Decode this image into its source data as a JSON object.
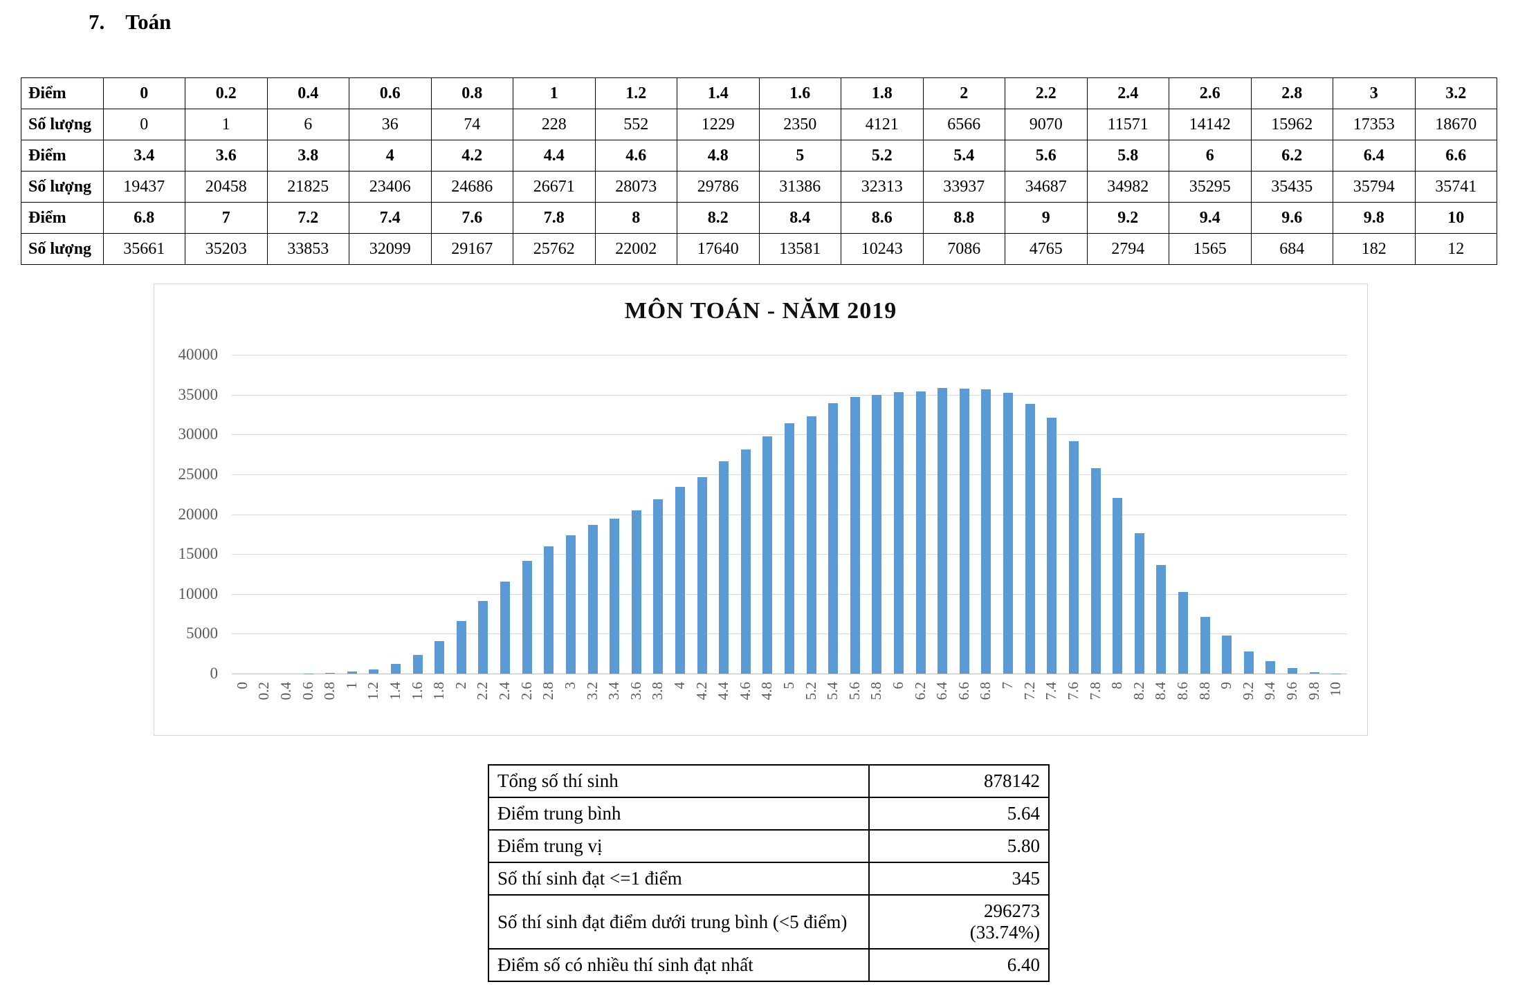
{
  "heading": {
    "number": "7.",
    "subject": "Toán"
  },
  "score_table": {
    "diem_label": "Điểm",
    "soluong_label": "Số lượng",
    "row_pairs": [
      {
        "diem": [
          "0",
          "0.2",
          "0.4",
          "0.6",
          "0.8",
          "1",
          "1.2",
          "1.4",
          "1.6",
          "1.8",
          "2",
          "2.2",
          "2.4",
          "2.6",
          "2.8",
          "3",
          "3.2"
        ],
        "soluong": [
          "0",
          "1",
          "6",
          "36",
          "74",
          "228",
          "552",
          "1229",
          "2350",
          "4121",
          "6566",
          "9070",
          "11571",
          "14142",
          "15962",
          "17353",
          "18670"
        ]
      },
      {
        "diem": [
          "3.4",
          "3.6",
          "3.8",
          "4",
          "4.2",
          "4.4",
          "4.6",
          "4.8",
          "5",
          "5.2",
          "5.4",
          "5.6",
          "5.8",
          "6",
          "6.2",
          "6.4",
          "6.6"
        ],
        "soluong": [
          "19437",
          "20458",
          "21825",
          "23406",
          "24686",
          "26671",
          "28073",
          "29786",
          "31386",
          "32313",
          "33937",
          "34687",
          "34982",
          "35295",
          "35435",
          "35794",
          "35741"
        ]
      },
      {
        "diem": [
          "6.8",
          "7",
          "7.2",
          "7.4",
          "7.6",
          "7.8",
          "8",
          "8.2",
          "8.4",
          "8.6",
          "8.8",
          "9",
          "9.2",
          "9.4",
          "9.6",
          "9.8",
          "10"
        ],
        "soluong": [
          "35661",
          "35203",
          "33853",
          "32099",
          "29167",
          "25762",
          "22002",
          "17640",
          "13581",
          "10243",
          "7086",
          "4765",
          "2794",
          "1565",
          "684",
          "182",
          "12"
        ]
      }
    ]
  },
  "chart_data": {
    "type": "bar",
    "title": "MÔN TOÁN - NĂM 2019",
    "categories": [
      "0",
      "0.2",
      "0.4",
      "0.6",
      "0.8",
      "1",
      "1.2",
      "1.4",
      "1.6",
      "1.8",
      "2",
      "2.2",
      "2.4",
      "2.6",
      "2.8",
      "3",
      "3.2",
      "3.4",
      "3.6",
      "3.8",
      "4",
      "4.2",
      "4.4",
      "4.6",
      "4.8",
      "5",
      "5.2",
      "5.4",
      "5.6",
      "5.8",
      "6",
      "6.2",
      "6.4",
      "6.6",
      "6.8",
      "7",
      "7.2",
      "7.4",
      "7.6",
      "7.8",
      "8",
      "8.2",
      "8.4",
      "8.6",
      "8.8",
      "9",
      "9.2",
      "9.4",
      "9.6",
      "9.8",
      "10"
    ],
    "values": [
      0,
      1,
      6,
      36,
      74,
      228,
      552,
      1229,
      2350,
      4121,
      6566,
      9070,
      11571,
      14142,
      15962,
      17353,
      18670,
      19437,
      20458,
      21825,
      23406,
      24686,
      26671,
      28073,
      29786,
      31386,
      32313,
      33937,
      34687,
      34982,
      35295,
      35435,
      35794,
      35741,
      35661,
      35203,
      33853,
      32099,
      29167,
      25762,
      22002,
      17640,
      13581,
      10243,
      7086,
      4765,
      2794,
      1565,
      684,
      182,
      12
    ],
    "xlabel": "",
    "ylabel": "",
    "ylim": [
      0,
      40000
    ],
    "ytick_step": 5000,
    "yticks": [
      "0",
      "5000",
      "10000",
      "15000",
      "20000",
      "25000",
      "30000",
      "35000",
      "40000"
    ],
    "grid": true,
    "legend": false,
    "bar_color": "#5B9BD5",
    "gridline_color": "#d9d9d9",
    "tick_label_color": "#595959"
  },
  "summary_table": {
    "rows": [
      {
        "label": "Tổng số thí sinh",
        "value": "878142"
      },
      {
        "label": "Điểm trung bình",
        "value": "5.64"
      },
      {
        "label": "Điểm trung vị",
        "value": "5.80"
      },
      {
        "label": "Số thí sinh đạt <=1 điểm",
        "value": "345"
      },
      {
        "label": "Số thí sinh đạt điểm dưới trung bình (<5 điểm)",
        "value": "296273\n(33.74%)"
      },
      {
        "label": "Điểm số có nhiều thí sinh đạt nhất",
        "value": "6.40"
      }
    ]
  }
}
